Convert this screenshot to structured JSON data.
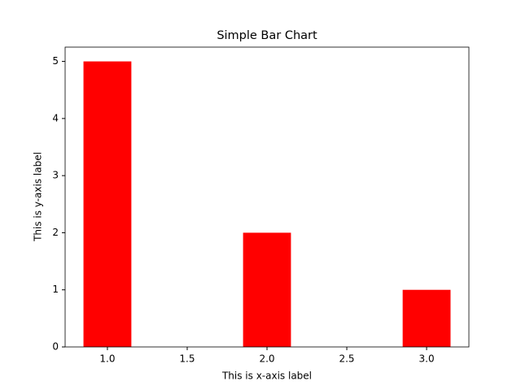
{
  "chart_data": {
    "type": "bar",
    "title": "Simple Bar Chart",
    "x_label": "This is x-axis label",
    "y_label": "This is y-axis label",
    "x": [
      1,
      2,
      3
    ],
    "values": [
      5,
      2,
      1
    ],
    "color": "#ff0000",
    "xlim": [
      0.735,
      3.265
    ],
    "xticks": [
      {
        "value": 1,
        "label": "1.0"
      },
      {
        "value": 1.5,
        "label": "1.5"
      },
      {
        "value": 2,
        "label": "2.0"
      },
      {
        "value": 2.5,
        "label": "2.5"
      },
      {
        "value": 3,
        "label": "3.0"
      }
    ],
    "ylim": [
      0,
      5.25
    ],
    "yticks": [
      0,
      1,
      2,
      3,
      4,
      5
    ],
    "grid": false
  }
}
